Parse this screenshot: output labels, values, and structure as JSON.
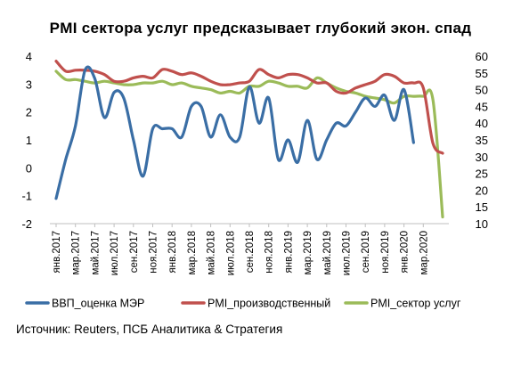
{
  "chart_data": {
    "type": "line",
    "title": "PMI сектора услуг предсказывает глубокий экон. спад",
    "x_tick_labels": [
      "янв.2017",
      "мар.2017",
      "май.2017",
      "июл.2017",
      "сен.2017",
      "ноя.2017",
      "янв.2018",
      "мар.2018",
      "май.2018",
      "июл.2018",
      "сен.2018",
      "ноя.2018",
      "янв.2019",
      "мар.2019",
      "май.2019",
      "июл.2019",
      "сен.2019",
      "ноя.2019",
      "янв.2020",
      "мар.2020"
    ],
    "y_left": {
      "ticks": [
        "4",
        "3",
        "2",
        "1",
        "0",
        "-1",
        "-2"
      ],
      "ylim": [
        -2,
        4
      ]
    },
    "y_right": {
      "ticks": [
        "60",
        "55",
        "50",
        "45",
        "40",
        "35",
        "30",
        "25",
        "20",
        "15",
        "10"
      ],
      "ylim": [
        10,
        60
      ]
    },
    "grid": false,
    "legend_position": "bottom",
    "series": [
      {
        "name": "ВВП_оценка МЭР",
        "color": "#3a6ea5",
        "axis": "left",
        "points": [
          [
            0,
            -1.1
          ],
          [
            1,
            0.3
          ],
          [
            2,
            1.5
          ],
          [
            3,
            3.5
          ],
          [
            4,
            3.2
          ],
          [
            5,
            1.8
          ],
          [
            6,
            2.7
          ],
          [
            7,
            2.5
          ],
          [
            8,
            1.0
          ],
          [
            9,
            -0.3
          ],
          [
            10,
            1.4
          ],
          [
            11,
            1.4
          ],
          [
            12,
            1.4
          ],
          [
            13,
            1.1
          ],
          [
            14,
            2.2
          ],
          [
            15,
            2.2
          ],
          [
            16,
            1.1
          ],
          [
            17,
            1.9
          ],
          [
            18,
            1.1
          ],
          [
            19,
            1.1
          ],
          [
            20,
            2.9
          ],
          [
            21,
            1.6
          ],
          [
            22,
            2.5
          ],
          [
            23,
            0.3
          ],
          [
            24,
            1.0
          ],
          [
            25,
            0.2
          ],
          [
            26,
            1.7
          ],
          [
            27,
            0.3
          ],
          [
            28,
            1.0
          ],
          [
            29,
            1.6
          ],
          [
            30,
            1.5
          ],
          [
            31,
            2.0
          ],
          [
            32,
            2.5
          ],
          [
            33,
            2.2
          ],
          [
            34,
            2.6
          ],
          [
            35,
            1.7
          ],
          [
            36,
            2.8
          ],
          [
            37,
            0.9
          ]
        ]
      },
      {
        "name": "PMI_производственный",
        "color": "#c0504d",
        "axis": "right",
        "points": [
          [
            0,
            58.5
          ],
          [
            1,
            55.5
          ],
          [
            2,
            55.8
          ],
          [
            3,
            55.8
          ],
          [
            4,
            55.5
          ],
          [
            5,
            54.5
          ],
          [
            6,
            52.5
          ],
          [
            7,
            52.5
          ],
          [
            8,
            53.5
          ],
          [
            9,
            54.0
          ],
          [
            10,
            53.5
          ],
          [
            11,
            56.0
          ],
          [
            12,
            55.5
          ],
          [
            13,
            54.5
          ],
          [
            14,
            55.0
          ],
          [
            15,
            54.0
          ],
          [
            16,
            52.5
          ],
          [
            17,
            51.5
          ],
          [
            18,
            51.5
          ],
          [
            19,
            52.0
          ],
          [
            20,
            52.5
          ],
          [
            21,
            56.0
          ],
          [
            22,
            54.5
          ],
          [
            23,
            53.5
          ],
          [
            24,
            54.5
          ],
          [
            25,
            54.5
          ],
          [
            26,
            53.5
          ],
          [
            27,
            52.0
          ],
          [
            28,
            52.0
          ],
          [
            29,
            49.5
          ],
          [
            30,
            49.0
          ],
          [
            31,
            50.5
          ],
          [
            32,
            51.5
          ],
          [
            33,
            52.5
          ],
          [
            34,
            54.5
          ],
          [
            35,
            54.0
          ],
          [
            36,
            52.0
          ],
          [
            37,
            52.0
          ],
          [
            38,
            50.5
          ],
          [
            39,
            34.0
          ],
          [
            40,
            31.0
          ]
        ]
      },
      {
        "name": "PMI_сектор услуг",
        "color": "#9bbb59",
        "axis": "right",
        "points": [
          [
            0,
            55.5
          ],
          [
            1,
            53.0
          ],
          [
            2,
            53.0
          ],
          [
            3,
            52.5
          ],
          [
            4,
            52.0
          ],
          [
            5,
            52.5
          ],
          [
            6,
            52.0
          ],
          [
            7,
            51.5
          ],
          [
            8,
            51.5
          ],
          [
            9,
            52.0
          ],
          [
            10,
            52.0
          ],
          [
            11,
            52.5
          ],
          [
            12,
            51.5
          ],
          [
            13,
            52.0
          ],
          [
            14,
            51.0
          ],
          [
            15,
            50.5
          ],
          [
            16,
            50.0
          ],
          [
            17,
            49.0
          ],
          [
            18,
            49.5
          ],
          [
            19,
            49.0
          ],
          [
            20,
            51.0
          ],
          [
            21,
            51.0
          ],
          [
            22,
            52.5
          ],
          [
            23,
            52.0
          ],
          [
            24,
            51.0
          ],
          [
            25,
            51.0
          ],
          [
            26,
            50.5
          ],
          [
            27,
            53.5
          ],
          [
            28,
            52.0
          ],
          [
            29,
            50.5
          ],
          [
            30,
            49.5
          ],
          [
            31,
            49.0
          ],
          [
            32,
            48.0
          ],
          [
            33,
            47.5
          ],
          [
            34,
            47.0
          ],
          [
            35,
            46.0
          ],
          [
            36,
            48.0
          ],
          [
            37,
            48.0
          ],
          [
            38,
            48.0
          ],
          [
            39,
            47.0
          ],
          [
            40,
            12.0
          ]
        ]
      }
    ]
  },
  "source_text": "Источник: Reuters, ПСБ Аналитика & Стратегия"
}
